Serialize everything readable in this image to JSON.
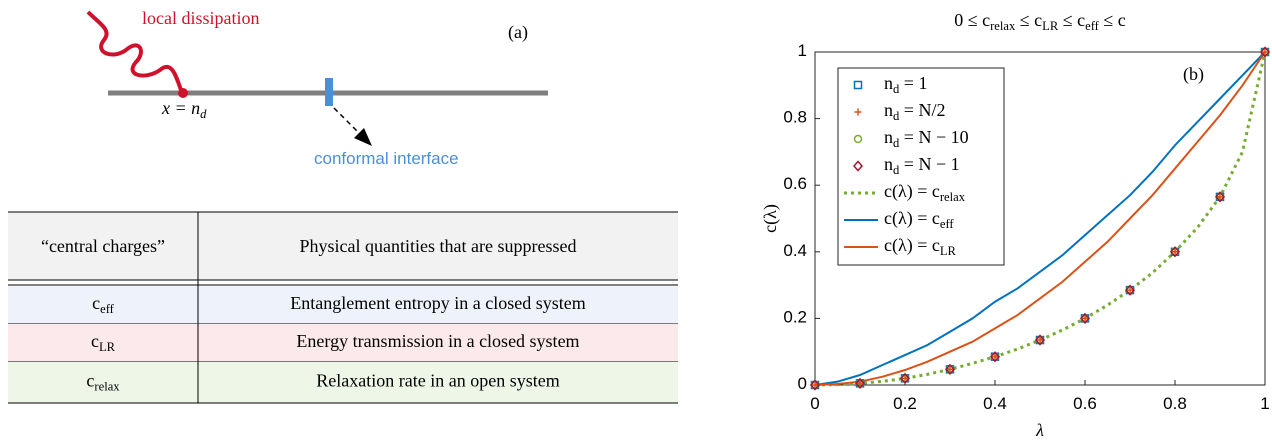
{
  "diagram": {
    "dissipation_label": "local dissipation",
    "panel_label": "(a)",
    "site_label": "x = n_d",
    "interface_label": "conformal interface"
  },
  "table": {
    "header": [
      "“central charges”",
      "Physical quantities that are suppressed"
    ],
    "rows": [
      [
        "c_eff",
        "Entanglement entropy in a closed system"
      ],
      [
        "c_LR",
        "Energy transmission in a closed system"
      ],
      [
        "c_relax",
        "Relaxation rate in an open system"
      ]
    ],
    "row_colors": [
      "#eef3fb",
      "#fbe9eb",
      "#eef6e7"
    ]
  },
  "chart_data": {
    "type": "line",
    "title": "0 ≤ c_relax ≤ c_LR ≤ c_eff ≤ c",
    "annotation": "(b)",
    "x_label": "λ",
    "y_label": "c(λ)",
    "x": [
      0,
      0.05,
      0.1,
      0.15,
      0.2,
      0.25,
      0.3,
      0.35,
      0.4,
      0.45,
      0.5,
      0.55,
      0.6,
      0.65,
      0.7,
      0.75,
      0.8,
      0.85,
      0.9,
      0.95,
      1
    ],
    "series": [
      {
        "name": "n_d = 1",
        "color": "#0072bd",
        "marker": "square",
        "values": [
          0,
          null,
          0.005,
          null,
          0.02,
          null,
          0.047,
          null,
          0.085,
          null,
          0.135,
          null,
          0.2,
          null,
          0.285,
          null,
          0.4,
          null,
          0.565,
          null,
          1
        ]
      },
      {
        "name": "n_d = N/2",
        "color": "#d95319",
        "marker": "plus",
        "values": [
          0,
          null,
          0.005,
          null,
          0.02,
          null,
          0.047,
          null,
          0.085,
          null,
          0.135,
          null,
          0.2,
          null,
          0.285,
          null,
          0.4,
          null,
          0.565,
          null,
          1
        ]
      },
      {
        "name": "n_d = N − 10",
        "color": "#77ac30",
        "marker": "circle",
        "values": [
          0,
          null,
          0.005,
          null,
          0.02,
          null,
          0.047,
          null,
          0.085,
          null,
          0.135,
          null,
          0.2,
          null,
          0.285,
          null,
          0.4,
          null,
          0.565,
          null,
          1
        ]
      },
      {
        "name": "n_d = N − 1",
        "color": "#a2142f",
        "marker": "diamond",
        "values": [
          0,
          null,
          0.005,
          null,
          0.02,
          null,
          0.047,
          null,
          0.085,
          null,
          0.135,
          null,
          0.2,
          null,
          0.285,
          null,
          0.4,
          null,
          0.565,
          null,
          1
        ]
      },
      {
        "name": "c(λ) = c_relax",
        "color": "#77ac30",
        "dash": "dotted",
        "values": [
          0,
          0.001,
          0.005,
          0.011,
          0.02,
          0.032,
          0.047,
          0.065,
          0.085,
          0.108,
          0.135,
          0.165,
          0.2,
          0.24,
          0.285,
          0.337,
          0.4,
          0.473,
          0.565,
          0.7,
          1
        ]
      },
      {
        "name": "c(λ) = c_eff",
        "color": "#0072bd",
        "values": [
          0,
          0.01,
          0.03,
          0.06,
          0.09,
          0.12,
          0.16,
          0.2,
          0.25,
          0.29,
          0.34,
          0.39,
          0.45,
          0.51,
          0.57,
          0.64,
          0.72,
          0.79,
          0.86,
          0.93,
          1
        ]
      },
      {
        "name": "c(λ) = c_LR",
        "color": "#d95319",
        "values": [
          0,
          0.003,
          0.01,
          0.025,
          0.045,
          0.07,
          0.1,
          0.13,
          0.17,
          0.21,
          0.26,
          0.31,
          0.37,
          0.43,
          0.5,
          0.57,
          0.65,
          0.73,
          0.81,
          0.9,
          1
        ]
      }
    ],
    "xlim": [
      0,
      1
    ],
    "xticks": [
      0,
      0.2,
      0.4,
      0.6,
      0.8,
      1
    ],
    "ylim": [
      0,
      1
    ],
    "yticks": [
      0,
      0.2,
      0.4,
      0.6,
      0.8,
      1
    ],
    "legend": "upper-left"
  }
}
